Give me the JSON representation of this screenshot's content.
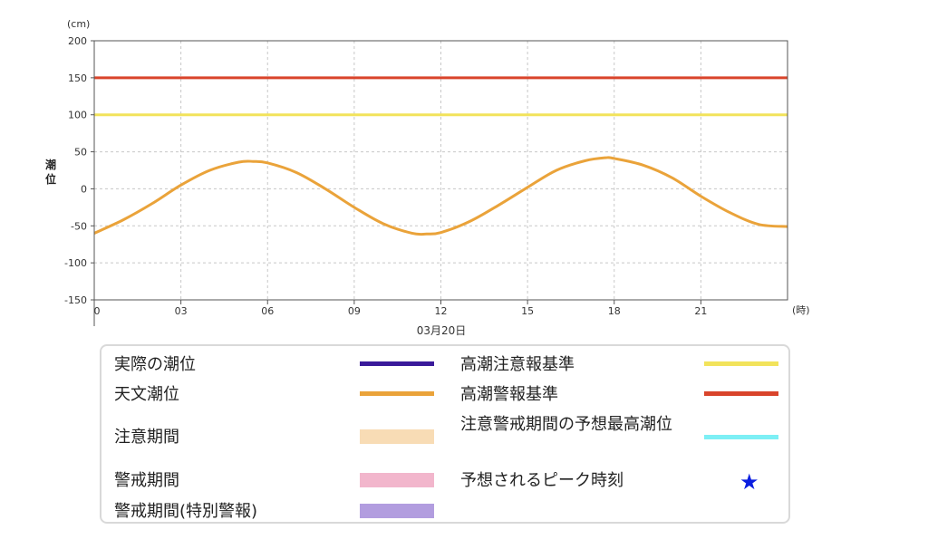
{
  "chart_data": {
    "type": "line",
    "y_unit": "(cm)",
    "ylabel": "潮位",
    "x_unit": "(時)",
    "date_label": "03月20日",
    "ylim": [
      -150,
      200
    ],
    "y_ticks": [
      200,
      150,
      100,
      50,
      0,
      -50,
      -100,
      -150
    ],
    "x_ticks": [
      "0",
      "03",
      "06",
      "09",
      "12",
      "15",
      "18",
      "21"
    ],
    "grid": true,
    "reference_lines": [
      {
        "name": "高潮警報基準",
        "value": 150,
        "color": "#d9442b"
      },
      {
        "name": "高潮注意報基準",
        "value": 100,
        "color": "#f2e35b"
      }
    ],
    "series": [
      {
        "name": "天文潮位",
        "color": "#eaa33a",
        "x": [
          0,
          1,
          2,
          3,
          4,
          5,
          5.5,
          6,
          7,
          8,
          9,
          10,
          11,
          11.5,
          12,
          13,
          14,
          15,
          16,
          17,
          17.7,
          18,
          19,
          20,
          21,
          22,
          23,
          24
        ],
        "y": [
          -60,
          -42,
          -20,
          5,
          25,
          36,
          37,
          35,
          22,
          0,
          -25,
          -47,
          -60,
          -61,
          -59,
          -44,
          -22,
          2,
          25,
          38,
          42,
          41,
          32,
          15,
          -10,
          -32,
          -48,
          -51
        ]
      }
    ]
  },
  "legend": {
    "items": [
      {
        "label": "実際の潮位",
        "kind": "line",
        "color": "#3a1a9a"
      },
      {
        "label": "天文潮位",
        "kind": "line",
        "color": "#eaa33a"
      },
      {
        "label": "注意期間",
        "kind": "band",
        "color": "#f8dcb5"
      },
      {
        "label": "警戒期間",
        "kind": "band",
        "color": "#f2b6cc"
      },
      {
        "label": "警戒期間(特別警報)",
        "kind": "band",
        "color": "#b29ddf"
      },
      {
        "label": "高潮注意報基準",
        "kind": "line",
        "color": "#f2e35b"
      },
      {
        "label": "高潮警報基準",
        "kind": "line",
        "color": "#d9442b"
      },
      {
        "label": "注意警戒期間の予想最高潮位",
        "kind": "line",
        "color": "#7deff5"
      },
      {
        "label": "予想されるピーク時刻",
        "kind": "star",
        "color": "#0a1ee0",
        "symbol": "★"
      }
    ]
  }
}
